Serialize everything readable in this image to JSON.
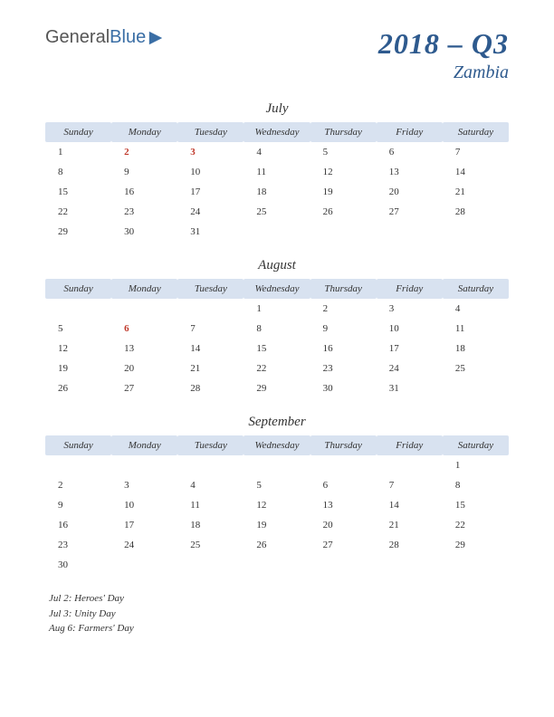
{
  "logo": {
    "part1": "General",
    "part2": "Blue"
  },
  "title": "2018 – Q3",
  "subtitle": "Zambia",
  "header_bg": "#d8e2f0",
  "title_color": "#2e5a8e",
  "holiday_color": "#c0392b",
  "day_headers": [
    "Sunday",
    "Monday",
    "Tuesday",
    "Wednesday",
    "Thursday",
    "Friday",
    "Saturday"
  ],
  "months": [
    {
      "name": "July",
      "weeks": [
        [
          {
            "d": "1"
          },
          {
            "d": "2",
            "h": true
          },
          {
            "d": "3",
            "h": true
          },
          {
            "d": "4"
          },
          {
            "d": "5"
          },
          {
            "d": "6"
          },
          {
            "d": "7"
          }
        ],
        [
          {
            "d": "8"
          },
          {
            "d": "9"
          },
          {
            "d": "10"
          },
          {
            "d": "11"
          },
          {
            "d": "12"
          },
          {
            "d": "13"
          },
          {
            "d": "14"
          }
        ],
        [
          {
            "d": "15"
          },
          {
            "d": "16"
          },
          {
            "d": "17"
          },
          {
            "d": "18"
          },
          {
            "d": "19"
          },
          {
            "d": "20"
          },
          {
            "d": "21"
          }
        ],
        [
          {
            "d": "22"
          },
          {
            "d": "23"
          },
          {
            "d": "24"
          },
          {
            "d": "25"
          },
          {
            "d": "26"
          },
          {
            "d": "27"
          },
          {
            "d": "28"
          }
        ],
        [
          {
            "d": "29"
          },
          {
            "d": "30"
          },
          {
            "d": "31"
          },
          {
            "d": ""
          },
          {
            "d": ""
          },
          {
            "d": ""
          },
          {
            "d": ""
          }
        ]
      ]
    },
    {
      "name": "August",
      "weeks": [
        [
          {
            "d": ""
          },
          {
            "d": ""
          },
          {
            "d": ""
          },
          {
            "d": "1"
          },
          {
            "d": "2"
          },
          {
            "d": "3"
          },
          {
            "d": "4"
          }
        ],
        [
          {
            "d": "5"
          },
          {
            "d": "6",
            "h": true
          },
          {
            "d": "7"
          },
          {
            "d": "8"
          },
          {
            "d": "9"
          },
          {
            "d": "10"
          },
          {
            "d": "11"
          }
        ],
        [
          {
            "d": "12"
          },
          {
            "d": "13"
          },
          {
            "d": "14"
          },
          {
            "d": "15"
          },
          {
            "d": "16"
          },
          {
            "d": "17"
          },
          {
            "d": "18"
          }
        ],
        [
          {
            "d": "19"
          },
          {
            "d": "20"
          },
          {
            "d": "21"
          },
          {
            "d": "22"
          },
          {
            "d": "23"
          },
          {
            "d": "24"
          },
          {
            "d": "25"
          }
        ],
        [
          {
            "d": "26"
          },
          {
            "d": "27"
          },
          {
            "d": "28"
          },
          {
            "d": "29"
          },
          {
            "d": "30"
          },
          {
            "d": "31"
          },
          {
            "d": ""
          }
        ]
      ]
    },
    {
      "name": "September",
      "weeks": [
        [
          {
            "d": ""
          },
          {
            "d": ""
          },
          {
            "d": ""
          },
          {
            "d": ""
          },
          {
            "d": ""
          },
          {
            "d": ""
          },
          {
            "d": "1"
          }
        ],
        [
          {
            "d": "2"
          },
          {
            "d": "3"
          },
          {
            "d": "4"
          },
          {
            "d": "5"
          },
          {
            "d": "6"
          },
          {
            "d": "7"
          },
          {
            "d": "8"
          }
        ],
        [
          {
            "d": "9"
          },
          {
            "d": "10"
          },
          {
            "d": "11"
          },
          {
            "d": "12"
          },
          {
            "d": "13"
          },
          {
            "d": "14"
          },
          {
            "d": "15"
          }
        ],
        [
          {
            "d": "16"
          },
          {
            "d": "17"
          },
          {
            "d": "18"
          },
          {
            "d": "19"
          },
          {
            "d": "20"
          },
          {
            "d": "21"
          },
          {
            "d": "22"
          }
        ],
        [
          {
            "d": "23"
          },
          {
            "d": "24"
          },
          {
            "d": "25"
          },
          {
            "d": "26"
          },
          {
            "d": "27"
          },
          {
            "d": "28"
          },
          {
            "d": "29"
          }
        ],
        [
          {
            "d": "30"
          },
          {
            "d": ""
          },
          {
            "d": ""
          },
          {
            "d": ""
          },
          {
            "d": ""
          },
          {
            "d": ""
          },
          {
            "d": ""
          }
        ]
      ]
    }
  ],
  "holidays_list": [
    "Jul 2: Heroes' Day",
    "Jul 3: Unity Day",
    "Aug 6: Farmers' Day"
  ]
}
